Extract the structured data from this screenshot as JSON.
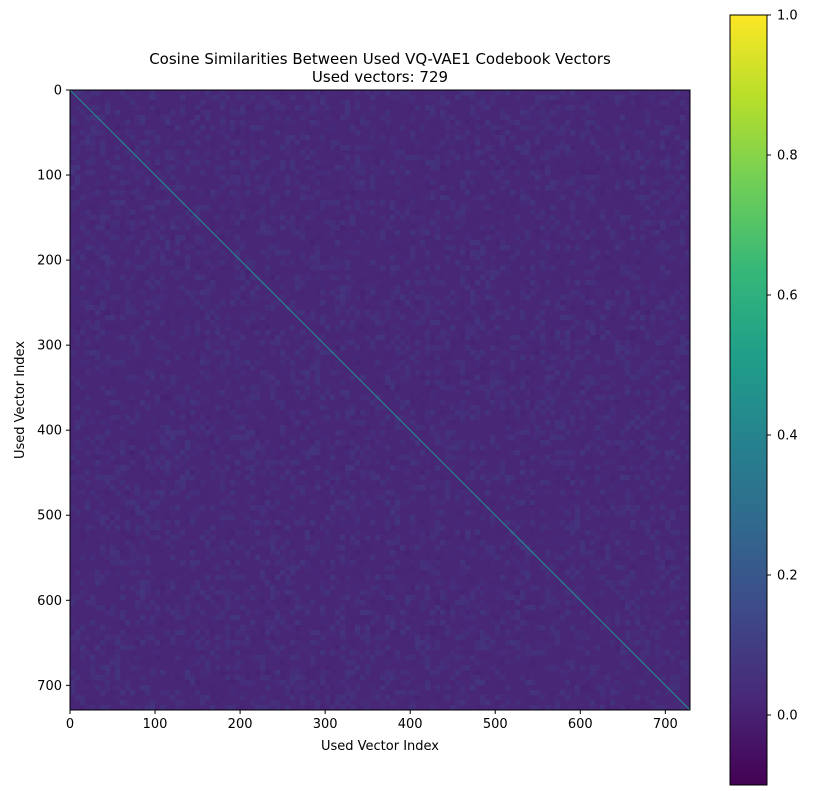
{
  "chart_data": {
    "type": "heatmap",
    "title": "Cosine Similarities Between Used VQ-VAE1 Codebook Vectors",
    "subtitle": "Used vectors: 729",
    "xlabel": "Used Vector Index",
    "ylabel": "Used Vector Index",
    "n": 729,
    "xlim": [
      0,
      729
    ],
    "ylim": [
      729,
      0
    ],
    "x_ticks": [
      0,
      100,
      200,
      300,
      400,
      500,
      600,
      700
    ],
    "y_ticks": [
      0,
      100,
      200,
      300,
      400,
      500,
      600,
      700
    ],
    "diagonal_value": 1.0,
    "off_diagonal_typical": 0.02,
    "off_diagonal_range": [
      -0.05,
      0.15
    ],
    "colormap": "viridis",
    "colorbar": {
      "vmin": -0.1,
      "vmax": 1.0,
      "ticks": [
        0.0,
        0.2,
        0.4,
        0.6,
        0.8,
        1.0
      ],
      "tick_labels": [
        "0.0",
        "0.2",
        "0.4",
        "0.6",
        "0.8",
        "1.0"
      ]
    },
    "grid": false,
    "legend": "none"
  },
  "colors": {
    "viridis_stops": [
      "#440154",
      "#482878",
      "#3e4989",
      "#31688e",
      "#26828e",
      "#1f9e89",
      "#35b779",
      "#6ece58",
      "#b5de2b",
      "#fde725"
    ],
    "background_cell": "#442b7d",
    "diagonal": "#21918c"
  }
}
